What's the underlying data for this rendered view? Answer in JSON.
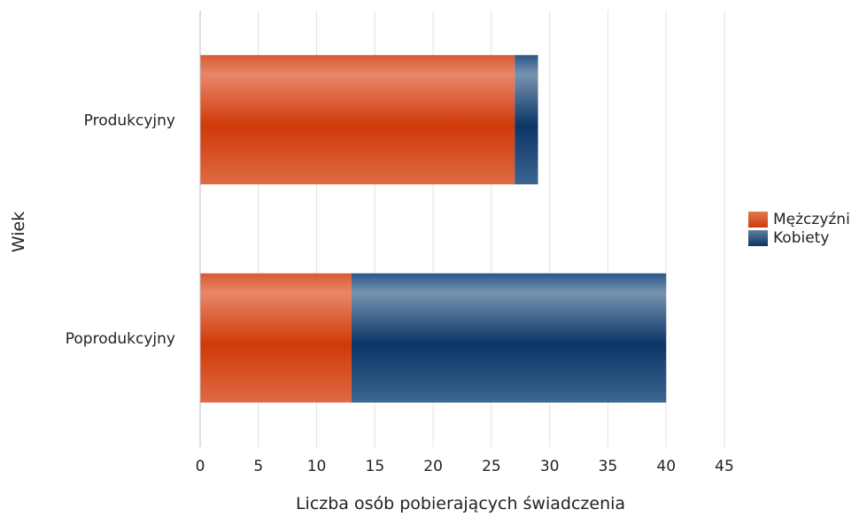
{
  "chart_data": {
    "type": "bar",
    "orientation": "horizontal",
    "stacked": true,
    "categories": [
      "Produkcyjny",
      "Poprodukcyjny"
    ],
    "series": [
      {
        "name": "Mężczyźni",
        "values": [
          27,
          13
        ],
        "color": "#d2410f"
      },
      {
        "name": "Kobiety",
        "values": [
          2,
          27
        ],
        "color": "#1e4a7a"
      }
    ],
    "xlabel": "Liczba osób pobierających świadczenia",
    "ylabel": "Wiek",
    "xlim": [
      0,
      45
    ],
    "xticks": [
      "0",
      "5",
      "10",
      "15",
      "20",
      "25",
      "30",
      "35",
      "40",
      "45"
    ],
    "grid": true,
    "legend_position": "right"
  }
}
